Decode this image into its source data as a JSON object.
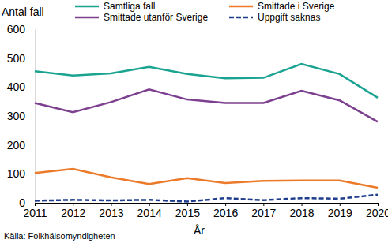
{
  "chart_data": {
    "type": "line",
    "y_label": "Antal fall",
    "x_label": "År",
    "source": "Källa: Folkhälsomyndigheten",
    "x": [
      2011,
      2012,
      2013,
      2014,
      2015,
      2016,
      2017,
      2018,
      2019,
      2020
    ],
    "xlim": [
      2011,
      2020
    ],
    "xticks": [
      2011,
      2012,
      2013,
      2014,
      2015,
      2016,
      2017,
      2018,
      2019,
      2020
    ],
    "ylim": [
      0,
      600
    ],
    "yticks": [
      0,
      100,
      200,
      300,
      400,
      500,
      600
    ],
    "grid": false,
    "legend": "top",
    "series": [
      {
        "name": "Samtliga fall",
        "color": "#1ba391",
        "line_style": "solid",
        "values": [
          455,
          440,
          447,
          470,
          445,
          430,
          432,
          480,
          445,
          363
        ]
      },
      {
        "name": "Smittade i Sverige",
        "color": "#ec7a2b",
        "line_style": "solid",
        "values": [
          103,
          117,
          88,
          65,
          85,
          68,
          76,
          77,
          77,
          52
        ]
      },
      {
        "name": "Smittade utanför Sverige",
        "color": "#7d3f8f",
        "line_style": "solid",
        "values": [
          345,
          313,
          348,
          392,
          357,
          345,
          345,
          387,
          354,
          280
        ]
      },
      {
        "name": "Uppgift saknas",
        "color": "#1f3d8c",
        "line_style": "dashed",
        "values": [
          7,
          10,
          8,
          10,
          4,
          16,
          9,
          16,
          14,
          28
        ]
      }
    ]
  }
}
